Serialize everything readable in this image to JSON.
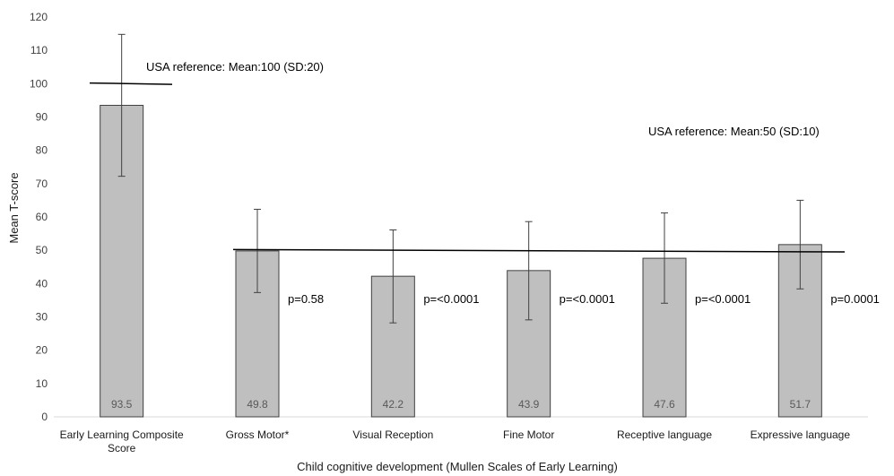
{
  "chart_data": {
    "type": "bar",
    "categories": [
      [
        "Early Learning Composite",
        "Score"
      ],
      [
        "Gross Motor*"
      ],
      [
        "Visual Reception"
      ],
      [
        "Fine Motor"
      ],
      [
        "Receptive language"
      ],
      [
        "Expressive language"
      ]
    ],
    "values": [
      93.5,
      49.8,
      42.2,
      43.9,
      47.6,
      51.7
    ],
    "value_labels": [
      "93.5",
      "49.8",
      "42.2",
      "43.9",
      "47.6",
      "51.7"
    ],
    "error_bars": [
      {
        "low": 72.2,
        "high": 114.8
      },
      {
        "low": 37.3,
        "high": 62.3
      },
      {
        "low": 28.2,
        "high": 56.1
      },
      {
        "low": 29.1,
        "high": 58.6
      },
      {
        "low": 34.1,
        "high": 61.2
      },
      {
        "low": 38.4,
        "high": 65.0
      }
    ],
    "p_values": [
      "",
      "p=0.58",
      "p=<0.0001",
      "p=<0.0001",
      "p=<0.0001",
      "p=0.0001"
    ],
    "reference_lines": [
      {
        "label": "USA reference: Mean:100 (SD:20)",
        "y_start": 100.2,
        "y_end": 99.8
      },
      {
        "label": "USA reference: Mean:50 (SD:10)",
        "y_start": 50.2,
        "y_end": 49.5
      }
    ],
    "xlabel": "Child cognitive development (Mullen Scales of Early Learning)",
    "ylabel": "Mean T-score",
    "ylim": [
      0,
      120
    ],
    "yticks": [
      0,
      10,
      20,
      30,
      40,
      50,
      60,
      70,
      80,
      90,
      100,
      110,
      120
    ],
    "grid": false,
    "colors": {
      "bar_fill": "#bfbfbf",
      "bar_stroke": "#404040",
      "axis": "#d9d9d9",
      "line": "#000000"
    }
  }
}
